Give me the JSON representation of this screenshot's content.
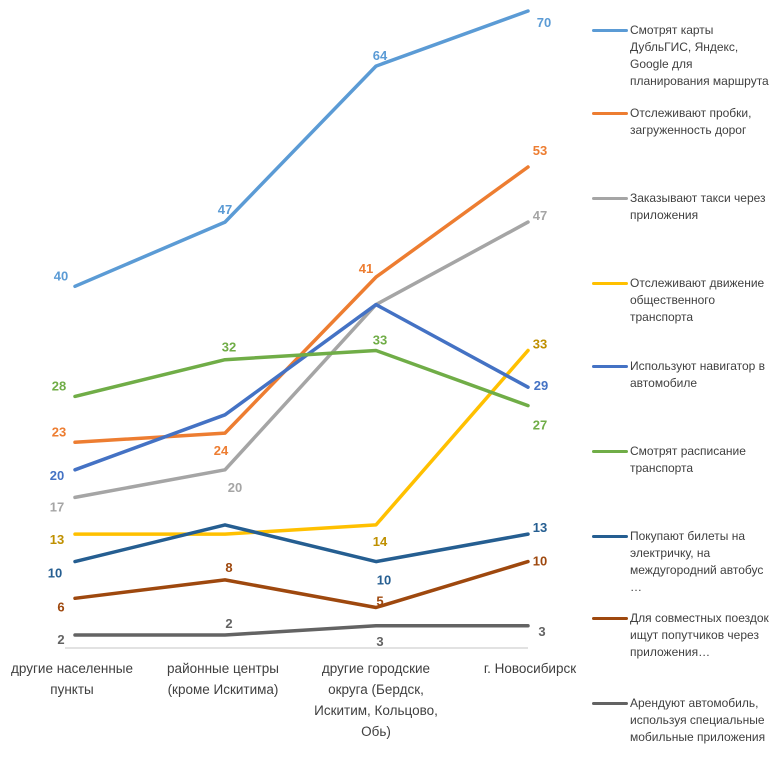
{
  "chart_data": {
    "type": "line",
    "title": "",
    "xlabel": "",
    "ylabel": "",
    "ylim": [
      0,
      72
    ],
    "grid": false,
    "legend_position": "right",
    "categories": [
      "другие населенные пункты",
      "районные центры (кроме Искитима)",
      "другие городские округа (Бердск, Искитим, Кольцово, Обь)",
      "г. Новосибирск"
    ],
    "category_lines": [
      [
        "другие населенные",
        "пункты"
      ],
      [
        "районные центры",
        "(кроме Искитима)"
      ],
      [
        "другие городские",
        "округа (Бердск,",
        "Искитим, Кольцово,",
        "Обь)"
      ],
      [
        "г. Новосибирск"
      ]
    ],
    "series": [
      {
        "name": "Смотрят карты ДубльГИС, Яндекс, Google для планирования маршрута",
        "legend_lines": [
          "Смотрят карты",
          "ДубльГИС, Яндекс,",
          "Google для",
          "планирования маршрута"
        ],
        "color": "#5b9bd5",
        "values": [
          40,
          47,
          64,
          70
        ],
        "labels": [
          "40",
          "47",
          "64",
          "70"
        ]
      },
      {
        "name": "Отслеживают пробки, загруженность дорог",
        "legend_lines": [
          "Отслеживают пробки,",
          "загруженность дорог"
        ],
        "color": "#ed7d31",
        "values": [
          23,
          24,
          41,
          53
        ],
        "labels": [
          "23",
          "24",
          "41",
          "53"
        ]
      },
      {
        "name": "Заказывают такси через приложения",
        "legend_lines": [
          "Заказывают такси через",
          "приложения"
        ],
        "color": "#a5a5a5",
        "values": [
          17,
          20,
          38,
          47
        ],
        "labels": [
          "17",
          "20",
          "",
          "47"
        ]
      },
      {
        "name": "Отслеживают движение общественного транспорта",
        "legend_lines": [
          "Отслеживают движение",
          "общественного",
          "транспорта"
        ],
        "color": "#ffc000",
        "values": [
          13,
          13,
          14,
          33
        ],
        "labels": [
          "13",
          "",
          "14",
          "33"
        ]
      },
      {
        "name": "Используют навигатор в автомобиле",
        "legend_lines": [
          "Используют навигатор в",
          "автомобиле"
        ],
        "color": "#4472c4",
        "values": [
          20,
          26,
          38,
          29
        ],
        "labels": [
          "20",
          "",
          "",
          "29"
        ]
      },
      {
        "name": "Смотрят расписание транспорта",
        "legend_lines": [
          "Смотрят расписание",
          "транспорта"
        ],
        "color": "#70ad47",
        "values": [
          28,
          32,
          33,
          27
        ],
        "labels": [
          "28",
          "32",
          "33",
          "27"
        ]
      },
      {
        "name": "Покупают билеты на электричку, на междугородний автобус …",
        "legend_lines": [
          "Покупают билеты на",
          "электричку, на",
          "междугородний автобус",
          "…"
        ],
        "color": "#255e91",
        "values": [
          10,
          14,
          10,
          13
        ],
        "labels": [
          "10",
          "",
          "10",
          "13"
        ]
      },
      {
        "name": "Для совместных поездок ищут попутчиков через приложения…",
        "legend_lines": [
          "Для совместных поездок",
          "ищут попутчиков через",
          "приложения…"
        ],
        "color": "#9e480e",
        "values": [
          6,
          8,
          5,
          10
        ],
        "labels": [
          "6",
          "8",
          "5",
          "10"
        ]
      },
      {
        "name": "Арендуют автомобиль, используя специальные мобильные приложения",
        "legend_lines": [
          "Арендуют автомобиль,",
          "используя специальные",
          "мобильные приложения"
        ],
        "color": "#636363",
        "values": [
          2,
          2,
          3,
          3
        ],
        "labels": [
          "2",
          "2",
          "3",
          "3"
        ]
      }
    ]
  }
}
